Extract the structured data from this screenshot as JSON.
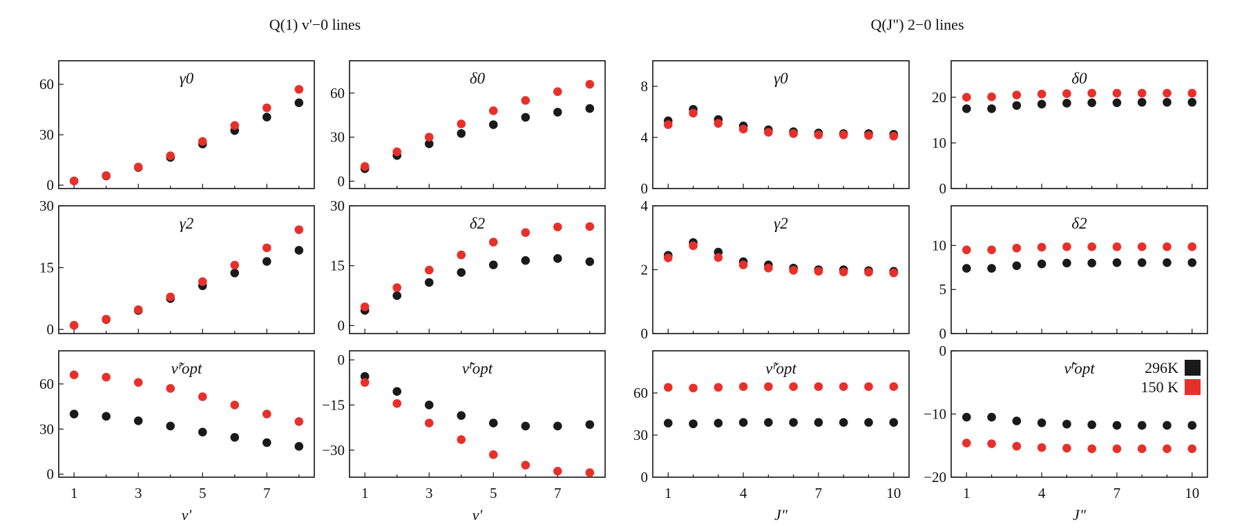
{
  "figure": {
    "group_titles": [
      "Q(1) v'−0 lines",
      "Q(J\") 2−0 lines"
    ],
    "legend": [
      {
        "label": "296K",
        "color": "#1a1a1a"
      },
      {
        "label": "150 K",
        "color": "#e8302a"
      }
    ],
    "colors": {
      "296K": "#1a1a1a",
      "150K": "#e8302a"
    }
  },
  "chart_data": [
    {
      "type": "scatter",
      "title": "γ0",
      "xlabel": "",
      "ylim": [
        -2,
        74
      ],
      "x": [
        1,
        2,
        3,
        4,
        5,
        6,
        7,
        8
      ],
      "xticks": [
        1,
        3,
        5,
        7
      ],
      "yticks": [
        0,
        30,
        60
      ],
      "series": [
        {
          "name": "296K",
          "values": [
            2.5,
            5.5,
            10.5,
            16.5,
            24.5,
            32.5,
            40.5,
            49
          ]
        },
        {
          "name": "150 K",
          "values": [
            2.5,
            5.7,
            10.8,
            17.5,
            26,
            35.5,
            46,
            57
          ]
        }
      ]
    },
    {
      "type": "scatter",
      "title": "δ0",
      "xlabel": "",
      "ylim": [
        -5,
        82
      ],
      "x": [
        1,
        2,
        3,
        4,
        5,
        6,
        7,
        8
      ],
      "xticks": [
        1,
        3,
        5,
        7
      ],
      "yticks": [
        0,
        30,
        60
      ],
      "series": [
        {
          "name": "296K",
          "values": [
            8.5,
            17.5,
            25.5,
            32.5,
            38.5,
            43.5,
            47,
            49.5
          ]
        },
        {
          "name": "150 K",
          "values": [
            10,
            20,
            30,
            39,
            48,
            55,
            61,
            66
          ]
        }
      ]
    },
    {
      "type": "scatter",
      "title": "γ0",
      "xlabel": "",
      "ylim": [
        0,
        10
      ],
      "x": [
        1,
        2,
        3,
        4,
        5,
        6,
        7,
        8,
        9,
        10
      ],
      "xticks": [
        1,
        4,
        7,
        10
      ],
      "yticks": [
        0,
        4,
        8
      ],
      "series": [
        {
          "name": "296K",
          "values": [
            5.3,
            6.2,
            5.4,
            4.9,
            4.6,
            4.45,
            4.35,
            4.3,
            4.3,
            4.25
          ]
        },
        {
          "name": "150 K",
          "values": [
            5.0,
            5.9,
            5.1,
            4.65,
            4.4,
            4.3,
            4.2,
            4.2,
            4.15,
            4.1
          ]
        }
      ]
    },
    {
      "type": "scatter",
      "title": "δ0",
      "xlabel": "",
      "ylim": [
        0,
        28
      ],
      "x": [
        1,
        2,
        3,
        4,
        5,
        6,
        7,
        8,
        9,
        10
      ],
      "xticks": [
        1,
        4,
        7,
        10
      ],
      "yticks": [
        0,
        10,
        20
      ],
      "series": [
        {
          "name": "296K",
          "values": [
            17.5,
            17.5,
            18.2,
            18.5,
            18.7,
            18.8,
            18.8,
            18.9,
            18.9,
            18.9
          ]
        },
        {
          "name": "150 K",
          "values": [
            20,
            20.1,
            20.5,
            20.7,
            20.8,
            20.9,
            20.9,
            20.9,
            20.9,
            20.9
          ]
        }
      ]
    },
    {
      "type": "scatter",
      "title": "γ2",
      "xlabel": "",
      "ylim": [
        -1,
        30
      ],
      "x": [
        1,
        2,
        3,
        4,
        5,
        6,
        7,
        8
      ],
      "xticks": [
        1,
        3,
        5,
        7
      ],
      "yticks": [
        0,
        15,
        30
      ],
      "series": [
        {
          "name": "296K",
          "values": [
            1,
            2.4,
            4.6,
            7.5,
            10.6,
            13.7,
            16.5,
            19.2
          ]
        },
        {
          "name": "150 K",
          "values": [
            1,
            2.5,
            4.8,
            7.9,
            11.6,
            15.6,
            19.8,
            24.2
          ]
        }
      ]
    },
    {
      "type": "scatter",
      "title": "δ2",
      "xlabel": "",
      "ylim": [
        -2,
        30
      ],
      "x": [
        1,
        2,
        3,
        4,
        5,
        6,
        7,
        8
      ],
      "xticks": [
        1,
        3,
        5,
        7
      ],
      "yticks": [
        0,
        15,
        30
      ],
      "series": [
        {
          "name": "296K",
          "values": [
            3.8,
            7.5,
            10.8,
            13.3,
            15.2,
            16.3,
            16.8,
            16
          ]
        },
        {
          "name": "150 K",
          "values": [
            4.7,
            9.5,
            13.9,
            17.7,
            20.9,
            23.3,
            24.7,
            24.8
          ]
        }
      ]
    },
    {
      "type": "scatter",
      "title": "γ2",
      "xlabel": "",
      "ylim": [
        0,
        4
      ],
      "x": [
        1,
        2,
        3,
        4,
        5,
        6,
        7,
        8,
        9,
        10
      ],
      "xticks": [
        1,
        4,
        7,
        10
      ],
      "yticks": [
        0,
        2,
        4
      ],
      "series": [
        {
          "name": "296K",
          "values": [
            2.45,
            2.85,
            2.55,
            2.25,
            2.15,
            2.05,
            2.0,
            2.0,
            1.97,
            1.95
          ]
        },
        {
          "name": "150 K",
          "values": [
            2.37,
            2.75,
            2.38,
            2.15,
            2.05,
            1.98,
            1.95,
            1.93,
            1.92,
            1.9
          ]
        }
      ]
    },
    {
      "type": "scatter",
      "title": "δ2",
      "xlabel": "",
      "ylim": [
        0,
        14.5
      ],
      "x": [
        1,
        2,
        3,
        4,
        5,
        6,
        7,
        8,
        9,
        10
      ],
      "xticks": [
        1,
        4,
        7,
        10
      ],
      "yticks": [
        0,
        5,
        10
      ],
      "series": [
        {
          "name": "296K",
          "values": [
            7.4,
            7.4,
            7.7,
            7.9,
            8.0,
            8.0,
            8.05,
            8.05,
            8.05,
            8.05
          ]
        },
        {
          "name": "150 K",
          "values": [
            9.5,
            9.5,
            9.7,
            9.8,
            9.85,
            9.85,
            9.85,
            9.85,
            9.85,
            9.85
          ]
        }
      ]
    },
    {
      "type": "scatter",
      "title": "ν̃ʳopt",
      "xlabel": "v'",
      "ylim": [
        -2,
        82
      ],
      "x": [
        1,
        2,
        3,
        4,
        5,
        6,
        7,
        8
      ],
      "xticks": [
        1,
        3,
        5,
        7
      ],
      "yticks": [
        0,
        30,
        60
      ],
      "series": [
        {
          "name": "296K",
          "values": [
            40,
            38.5,
            35.5,
            32,
            28,
            24.5,
            21,
            18.5
          ]
        },
        {
          "name": "150 K",
          "values": [
            66,
            64.5,
            61,
            57,
            51.5,
            46,
            40,
            35
          ]
        }
      ]
    },
    {
      "type": "scatter",
      "title": "ν̃ⁱopt",
      "xlabel": "v'",
      "ylim": [
        -39,
        3
      ],
      "x": [
        1,
        2,
        3,
        4,
        5,
        6,
        7,
        8
      ],
      "xticks": [
        1,
        3,
        5,
        7
      ],
      "yticks": [
        0,
        -15,
        -30
      ],
      "series": [
        {
          "name": "296K",
          "values": [
            -5.5,
            -10.5,
            -15,
            -18.5,
            -21,
            -22,
            -22,
            -21.5
          ]
        },
        {
          "name": "150 K",
          "values": [
            -7.5,
            -14.5,
            -21,
            -26.5,
            -31.5,
            -35,
            -37,
            -37.5
          ]
        }
      ]
    },
    {
      "type": "scatter",
      "title": "ν̃ʳopt",
      "xlabel": "J\"",
      "ylim": [
        0,
        90
      ],
      "x": [
        1,
        2,
        3,
        4,
        5,
        6,
        7,
        8,
        9,
        10
      ],
      "xticks": [
        1,
        4,
        7,
        10
      ],
      "yticks": [
        0,
        30,
        60
      ],
      "series": [
        {
          "name": "296K",
          "values": [
            38.5,
            38,
            38.5,
            39,
            39,
            39,
            39,
            39,
            39,
            39
          ]
        },
        {
          "name": "150 K",
          "values": [
            64,
            63.5,
            64,
            64.5,
            64.5,
            64.5,
            64.5,
            64.5,
            64.5,
            64.5
          ]
        }
      ]
    },
    {
      "type": "scatter",
      "title": "ν̃ⁱopt",
      "xlabel": "J\"",
      "ylim": [
        -20,
        0
      ],
      "x": [
        1,
        2,
        3,
        4,
        5,
        6,
        7,
        8,
        9,
        10
      ],
      "xticks": [
        1,
        4,
        7,
        10
      ],
      "yticks": [
        0,
        -10,
        -20
      ],
      "series": [
        {
          "name": "296K",
          "values": [
            -10.5,
            -10.5,
            -11.1,
            -11.4,
            -11.6,
            -11.7,
            -11.8,
            -11.8,
            -11.8,
            -11.8
          ]
        },
        {
          "name": "150 K",
          "values": [
            -14.6,
            -14.7,
            -15.1,
            -15.3,
            -15.4,
            -15.5,
            -15.5,
            -15.5,
            -15.5,
            -15.5
          ]
        }
      ]
    }
  ]
}
